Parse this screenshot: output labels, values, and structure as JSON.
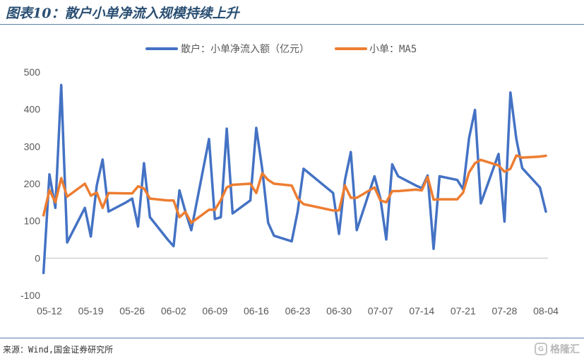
{
  "header": {
    "title": "图表10：散户小单净流入规模持续上升"
  },
  "footer": {
    "source": "来源：Wind,国金证券研究所",
    "watermark": "格隆汇"
  },
  "colors": {
    "series1": "#4472C4",
    "series2": "#ED7D31",
    "axis": "#BFBFBF",
    "text": "#595959"
  },
  "chart_data": {
    "type": "line",
    "title": "",
    "xlabel": "",
    "ylabel": "",
    "ylim": [
      -100,
      500
    ],
    "yticks": [
      -100,
      0,
      100,
      200,
      300,
      400,
      500
    ],
    "grid": false,
    "legend": "top-center",
    "xticks": [
      "05-12",
      "05-19",
      "05-26",
      "06-02",
      "06-09",
      "06-16",
      "06-23",
      "06-30",
      "07-07",
      "07-14",
      "07-21",
      "07-28",
      "08-04"
    ],
    "x": [
      "05-11",
      "05-12",
      "05-13",
      "05-14",
      "05-15",
      "05-18",
      "05-19",
      "05-20",
      "05-21",
      "05-22",
      "05-25",
      "05-26",
      "05-27",
      "05-28",
      "05-29",
      "06-01",
      "06-02",
      "06-03",
      "06-04",
      "06-05",
      "06-08",
      "06-09",
      "06-10",
      "06-11",
      "06-12",
      "06-15",
      "06-16",
      "06-17",
      "06-18",
      "06-19",
      "06-22",
      "06-23",
      "06-24",
      "06-29",
      "06-30",
      "07-01",
      "07-02",
      "07-03",
      "07-06",
      "07-07",
      "07-08",
      "07-09",
      "07-10",
      "07-13",
      "07-14",
      "07-15",
      "07-16",
      "07-17",
      "07-20",
      "07-21",
      "07-22",
      "07-23",
      "07-24",
      "07-27",
      "07-28",
      "07-29",
      "07-30",
      "07-31",
      "08-03",
      "08-04"
    ],
    "series": [
      {
        "name": "散户：小单净流入额（亿元）",
        "values": [
          -40,
          225,
          135,
          465,
          42,
          135,
          58,
          195,
          265,
          125,
          150,
          160,
          85,
          255,
          110,
          50,
          32,
          182,
          125,
          75,
          320,
          105,
          110,
          348,
          120,
          155,
          350,
          240,
          95,
          60,
          45,
          125,
          240,
          175,
          65,
          210,
          285,
          75,
          220,
          160,
          50,
          252,
          220,
          195,
          188,
          222,
          25,
          220,
          210,
          185,
          322,
          398,
          147,
          280,
          98,
          445,
          320,
          242,
          190,
          125
        ]
      },
      {
        "name": "小单：MA5",
        "values": [
          115,
          183,
          150,
          215,
          165,
          200,
          168,
          176,
          135,
          175,
          174,
          174,
          193,
          187,
          160,
          155,
          155,
          110,
          124,
          95,
          130,
          130,
          156,
          190,
          197,
          200,
          175,
          228,
          210,
          200,
          195,
          160,
          145,
          128,
          128,
          195,
          162,
          162,
          190,
          155,
          150,
          180,
          180,
          184,
          182,
          218,
          157,
          158,
          158,
          176,
          230,
          255,
          264,
          249,
          232,
          240,
          276,
          270,
          273,
          275
        ]
      }
    ]
  }
}
